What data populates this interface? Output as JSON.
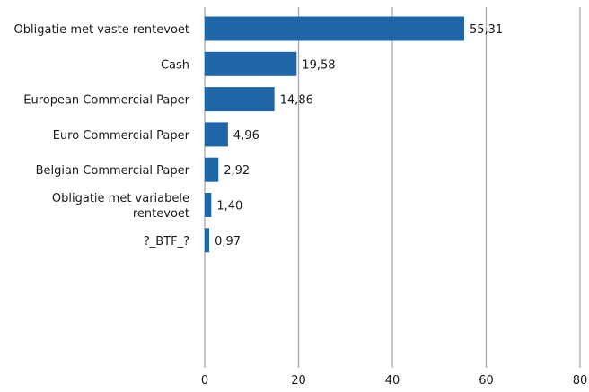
{
  "chart_data": {
    "type": "bar",
    "orientation": "horizontal",
    "categories": [
      "Obligatie met vaste rentevoet",
      "Cash",
      "European Commercial Paper",
      "Euro Commercial Paper",
      "Belgian Commercial Paper",
      "Obligatie met variabele rentevoet",
      "?_BTF_?"
    ],
    "category_lines": [
      [
        "Obligatie met vaste rentevoet"
      ],
      [
        "Cash"
      ],
      [
        "European Commercial Paper"
      ],
      [
        "Euro Commercial Paper"
      ],
      [
        "Belgian Commercial Paper"
      ],
      [
        "Obligatie met variabele",
        "rentevoet"
      ],
      [
        "?_BTF_?"
      ]
    ],
    "values": [
      55.31,
      19.58,
      14.86,
      4.96,
      2.92,
      1.4,
      0.97
    ],
    "value_labels": [
      "55,31",
      "19,58",
      "14,86",
      "4,96",
      "2,92",
      "1,40",
      "0,97"
    ],
    "xlim": [
      0,
      80
    ],
    "xticks": [
      0,
      20,
      40,
      60,
      80
    ],
    "xtick_labels": [
      "0",
      "20",
      "40",
      "60",
      "80"
    ],
    "grid": "vertical",
    "legend": "none",
    "bar_color": "#1f66a8",
    "grid_color": "#a6a6a6"
  }
}
